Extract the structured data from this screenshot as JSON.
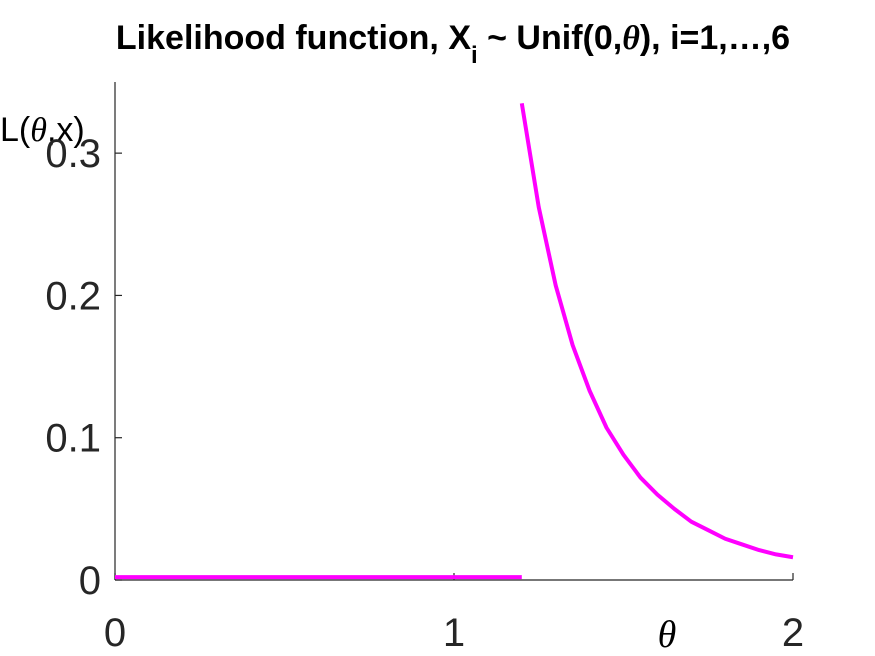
{
  "chart_data": {
    "type": "line",
    "title": {
      "prefix": "Likelihood function, X",
      "subscript": "i",
      "middle": " ~ Unif(0,",
      "theta": "θ",
      "suffix": "), i=1,…,6"
    },
    "ylabel": {
      "prefix": "L(",
      "theta": "θ",
      "suffix": ",x)"
    },
    "xlabel": "θ",
    "xlim": [
      0,
      2
    ],
    "ylim": [
      0,
      0.35
    ],
    "x_ticks": [
      "0",
      "1",
      "2"
    ],
    "y_ticks": [
      "0",
      "0.1",
      "0.2",
      "0.3"
    ],
    "grid": false,
    "series": [
      {
        "color": "#ff00ff",
        "segments": [
          {
            "x": [
              0,
              1.2
            ],
            "y": [
              0.002,
              0.002
            ]
          },
          {
            "x": [
              1.2,
              1.25,
              1.3,
              1.35,
              1.4,
              1.45,
              1.5,
              1.55,
              1.6,
              1.65,
              1.7,
              1.75,
              1.8,
              1.85,
              1.9,
              1.95,
              2.0
            ],
            "y": [
              0.335,
              0.262,
              0.207,
              0.165,
              0.133,
              0.107,
              0.088,
              0.072,
              0.06,
              0.05,
              0.041,
              0.035,
              0.029,
              0.025,
              0.021,
              0.018,
              0.016
            ]
          }
        ]
      }
    ]
  }
}
